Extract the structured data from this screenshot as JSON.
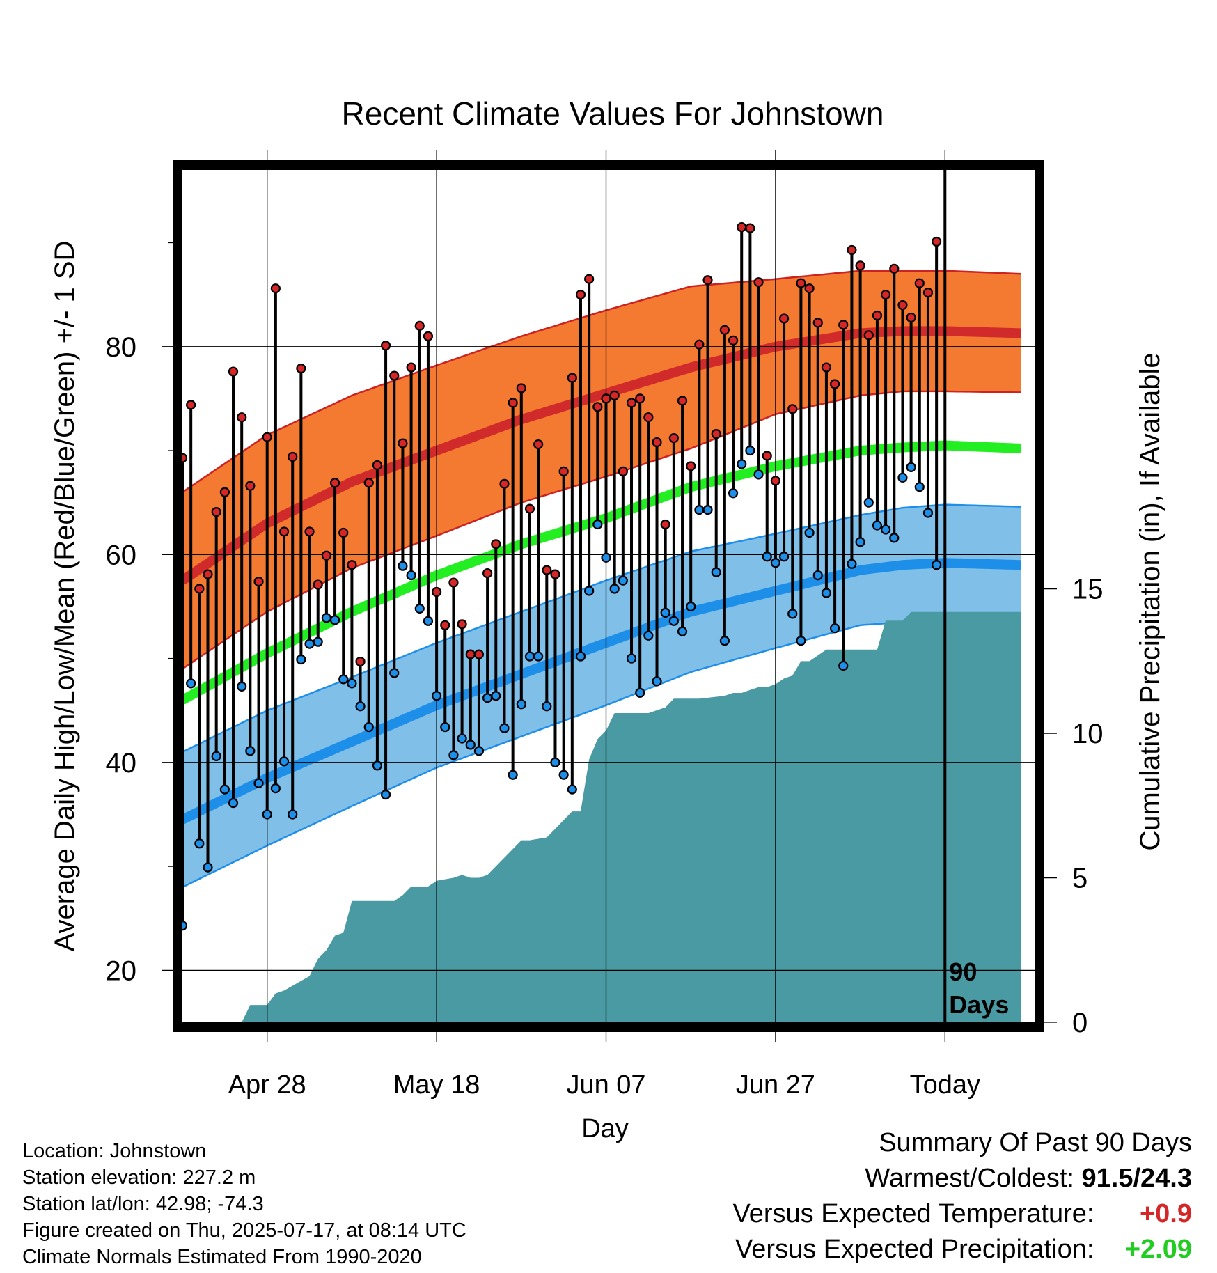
{
  "chart_data": {
    "type": "line",
    "title": "Recent Climate Values For Johnstown",
    "xlabel": "Day",
    "ylabel": "Average Daily High/Low/Mean (Red/Blue/Green) +/- 1 SD",
    "ylabel_right": "Cumulative Precipitation (in), If Available",
    "x_day_range": [
      -90,
      9
    ],
    "ylim": [
      15,
      97
    ],
    "y_ticks": [
      20,
      40,
      60,
      80
    ],
    "y_minor_ticks": [
      30,
      50,
      70,
      90
    ],
    "precip_ylim": [
      0,
      29.5
    ],
    "precip_ticks": [
      0,
      5,
      10,
      15
    ],
    "x_ticks": [
      {
        "label": "Apr 28",
        "day": -80
      },
      {
        "label": "May 18",
        "day": -60
      },
      {
        "label": "Jun 07",
        "day": -40
      },
      {
        "label": "Jun 27",
        "day": -20
      },
      {
        "label": "Today",
        "day": 0
      }
    ],
    "today_marker": {
      "line1": "90",
      "line2": "Days"
    },
    "normals": {
      "day": [
        -90,
        -80,
        -70,
        -60,
        -50,
        -40,
        -30,
        -20,
        -10,
        -5,
        0,
        9
      ],
      "high_mean": [
        57.5,
        63,
        67,
        70,
        73,
        75.5,
        78,
        80,
        81.3,
        81.5,
        81.5,
        81.3
      ],
      "high_sd": [
        8.5,
        8.5,
        8.3,
        8.2,
        8.0,
        8.0,
        7.8,
        6.5,
        6.0,
        5.8,
        5.8,
        5.7
      ],
      "low_mean": [
        34.5,
        38.5,
        42,
        45.5,
        48.5,
        51.5,
        54.5,
        56.5,
        58.5,
        59,
        59.2,
        59
      ],
      "low_sd": [
        6.5,
        6.5,
        6.2,
        6.0,
        6.0,
        6.0,
        5.8,
        5.5,
        5.3,
        5.5,
        5.6,
        5.6
      ],
      "avg_mean": [
        46,
        50.5,
        54.5,
        58,
        61,
        63.5,
        66.5,
        68.5,
        70,
        70.3,
        70.5,
        70.2
      ]
    },
    "series": [
      {
        "name": "High",
        "color": "#d62728",
        "values": [
          69.3,
          74.4,
          56.7,
          58.1,
          64.1,
          66.0,
          77.6,
          73.2,
          66.6,
          57.4,
          71.3,
          85.6,
          62.2,
          69.4,
          77.9,
          62.2,
          57.1,
          59.9,
          66.9,
          62.1,
          59.0,
          49.7,
          66.9,
          68.6,
          80.1,
          77.2,
          70.7,
          78.0,
          82.0,
          81.0,
          56.4,
          53.2,
          57.3,
          53.3,
          50.4,
          50.4,
          58.2,
          61.0,
          66.8,
          74.6,
          76.0,
          64.4,
          70.6,
          58.5,
          58.1,
          68.0,
          77.0,
          85.0,
          86.5,
          74.2,
          75.0,
          75.3,
          68.0,
          74.6,
          75.0,
          73.2,
          70.8,
          62.9,
          71.2,
          74.8,
          68.5,
          80.2,
          86.4,
          71.6,
          81.6,
          80.6,
          91.5,
          91.4,
          86.2,
          69.5,
          67.1,
          82.7,
          74.0,
          86.1,
          85.6,
          82.3,
          78.0,
          76.4,
          82.1,
          89.3,
          87.8,
          81.1,
          83.0,
          85.0,
          87.5,
          84.0,
          82.8,
          86.1,
          85.2,
          90.1
        ]
      },
      {
        "name": "Low",
        "color": "#1e8fe8",
        "values": [
          24.3,
          47.6,
          32.2,
          29.9,
          40.6,
          37.4,
          36.1,
          47.3,
          41.1,
          38.0,
          35.0,
          37.5,
          40.1,
          35.0,
          49.9,
          51.4,
          51.6,
          53.9,
          53.7,
          48.0,
          47.6,
          45.4,
          43.4,
          39.7,
          36.9,
          48.6,
          58.9,
          58.0,
          54.8,
          53.6,
          46.4,
          43.4,
          40.7,
          42.3,
          41.7,
          41.1,
          46.2,
          46.4,
          43.3,
          38.8,
          45.6,
          50.2,
          50.2,
          45.4,
          40.0,
          38.8,
          37.4,
          50.2,
          56.5,
          62.9,
          59.7,
          56.7,
          57.5,
          50.0,
          46.7,
          52.2,
          47.8,
          54.4,
          53.6,
          52.6,
          55.0,
          64.3,
          64.3,
          58.3,
          51.7,
          65.9,
          68.7,
          70.0,
          67.7,
          59.8,
          59.2,
          59.8,
          54.3,
          51.7,
          62.1,
          58.0,
          56.3,
          52.9,
          49.3,
          59.1,
          61.2,
          65.0,
          62.8,
          62.4,
          61.6,
          67.4,
          68.4,
          66.5,
          64.0,
          59.0
        ]
      }
    ],
    "precip": {
      "color": "#4a9aa3",
      "day": [
        -90,
        -83,
        -82,
        -80,
        -79,
        -78,
        -75,
        -74,
        -73,
        -72,
        -71,
        -70,
        -69,
        -68,
        -65,
        -64,
        -63,
        -61,
        -60,
        -58,
        -57,
        -56,
        -55,
        -54,
        -51,
        -50,
        -49,
        -47,
        -45,
        -44,
        -43,
        -42,
        -41,
        -40,
        -39,
        -38,
        -37,
        -36,
        -35,
        -34,
        -33,
        -32,
        -31,
        -29,
        -26,
        -25,
        -24,
        -23,
        -22,
        -21,
        -20,
        -19,
        -18,
        -17,
        -16,
        -15,
        -14,
        -13,
        -12,
        -11,
        -10,
        -9,
        -8,
        -7,
        -6,
        -5,
        -4,
        -3,
        9
      ],
      "values": [
        0,
        0,
        0.6,
        0.6,
        1.0,
        1.1,
        1.6,
        2.2,
        2.5,
        3.0,
        3.1,
        4.2,
        4.2,
        4.2,
        4.2,
        4.4,
        4.7,
        4.7,
        4.9,
        5.0,
        5.1,
        5.0,
        5.0,
        5.1,
        6.0,
        6.3,
        6.3,
        6.4,
        7.0,
        7.3,
        7.3,
        9.1,
        9.8,
        10.1,
        10.7,
        10.7,
        10.7,
        10.7,
        10.7,
        10.8,
        10.9,
        11.2,
        11.2,
        11.2,
        11.3,
        11.4,
        11.4,
        11.5,
        11.6,
        11.6,
        11.7,
        11.9,
        12.0,
        12.5,
        12.5,
        12.7,
        12.9,
        12.9,
        12.9,
        12.9,
        12.9,
        12.9,
        12.9,
        13.9,
        13.9,
        13.9,
        14.2,
        14.2,
        14.2
      ]
    }
  },
  "footer": {
    "location": "Location: Johnstown",
    "elevation": "Station elevation: 227.2 m",
    "latlon": "Station lat/lon: 42.98; -74.3",
    "created": "Figure created on Thu, 2025-07-17, at 08:14 UTC",
    "normals_note": "Climate Normals Estimated From 1990-2020"
  },
  "summary": {
    "title": "Summary Of Past 90 Days",
    "warmest_coldest_label": "Warmest/Coldest:",
    "warmest_coldest_value": "91.5/24.3",
    "temp_label": "Versus Expected Temperature:",
    "temp_value": "+0.9",
    "precip_label": "Versus Expected Precipitation:",
    "precip_value": "+2.09"
  }
}
